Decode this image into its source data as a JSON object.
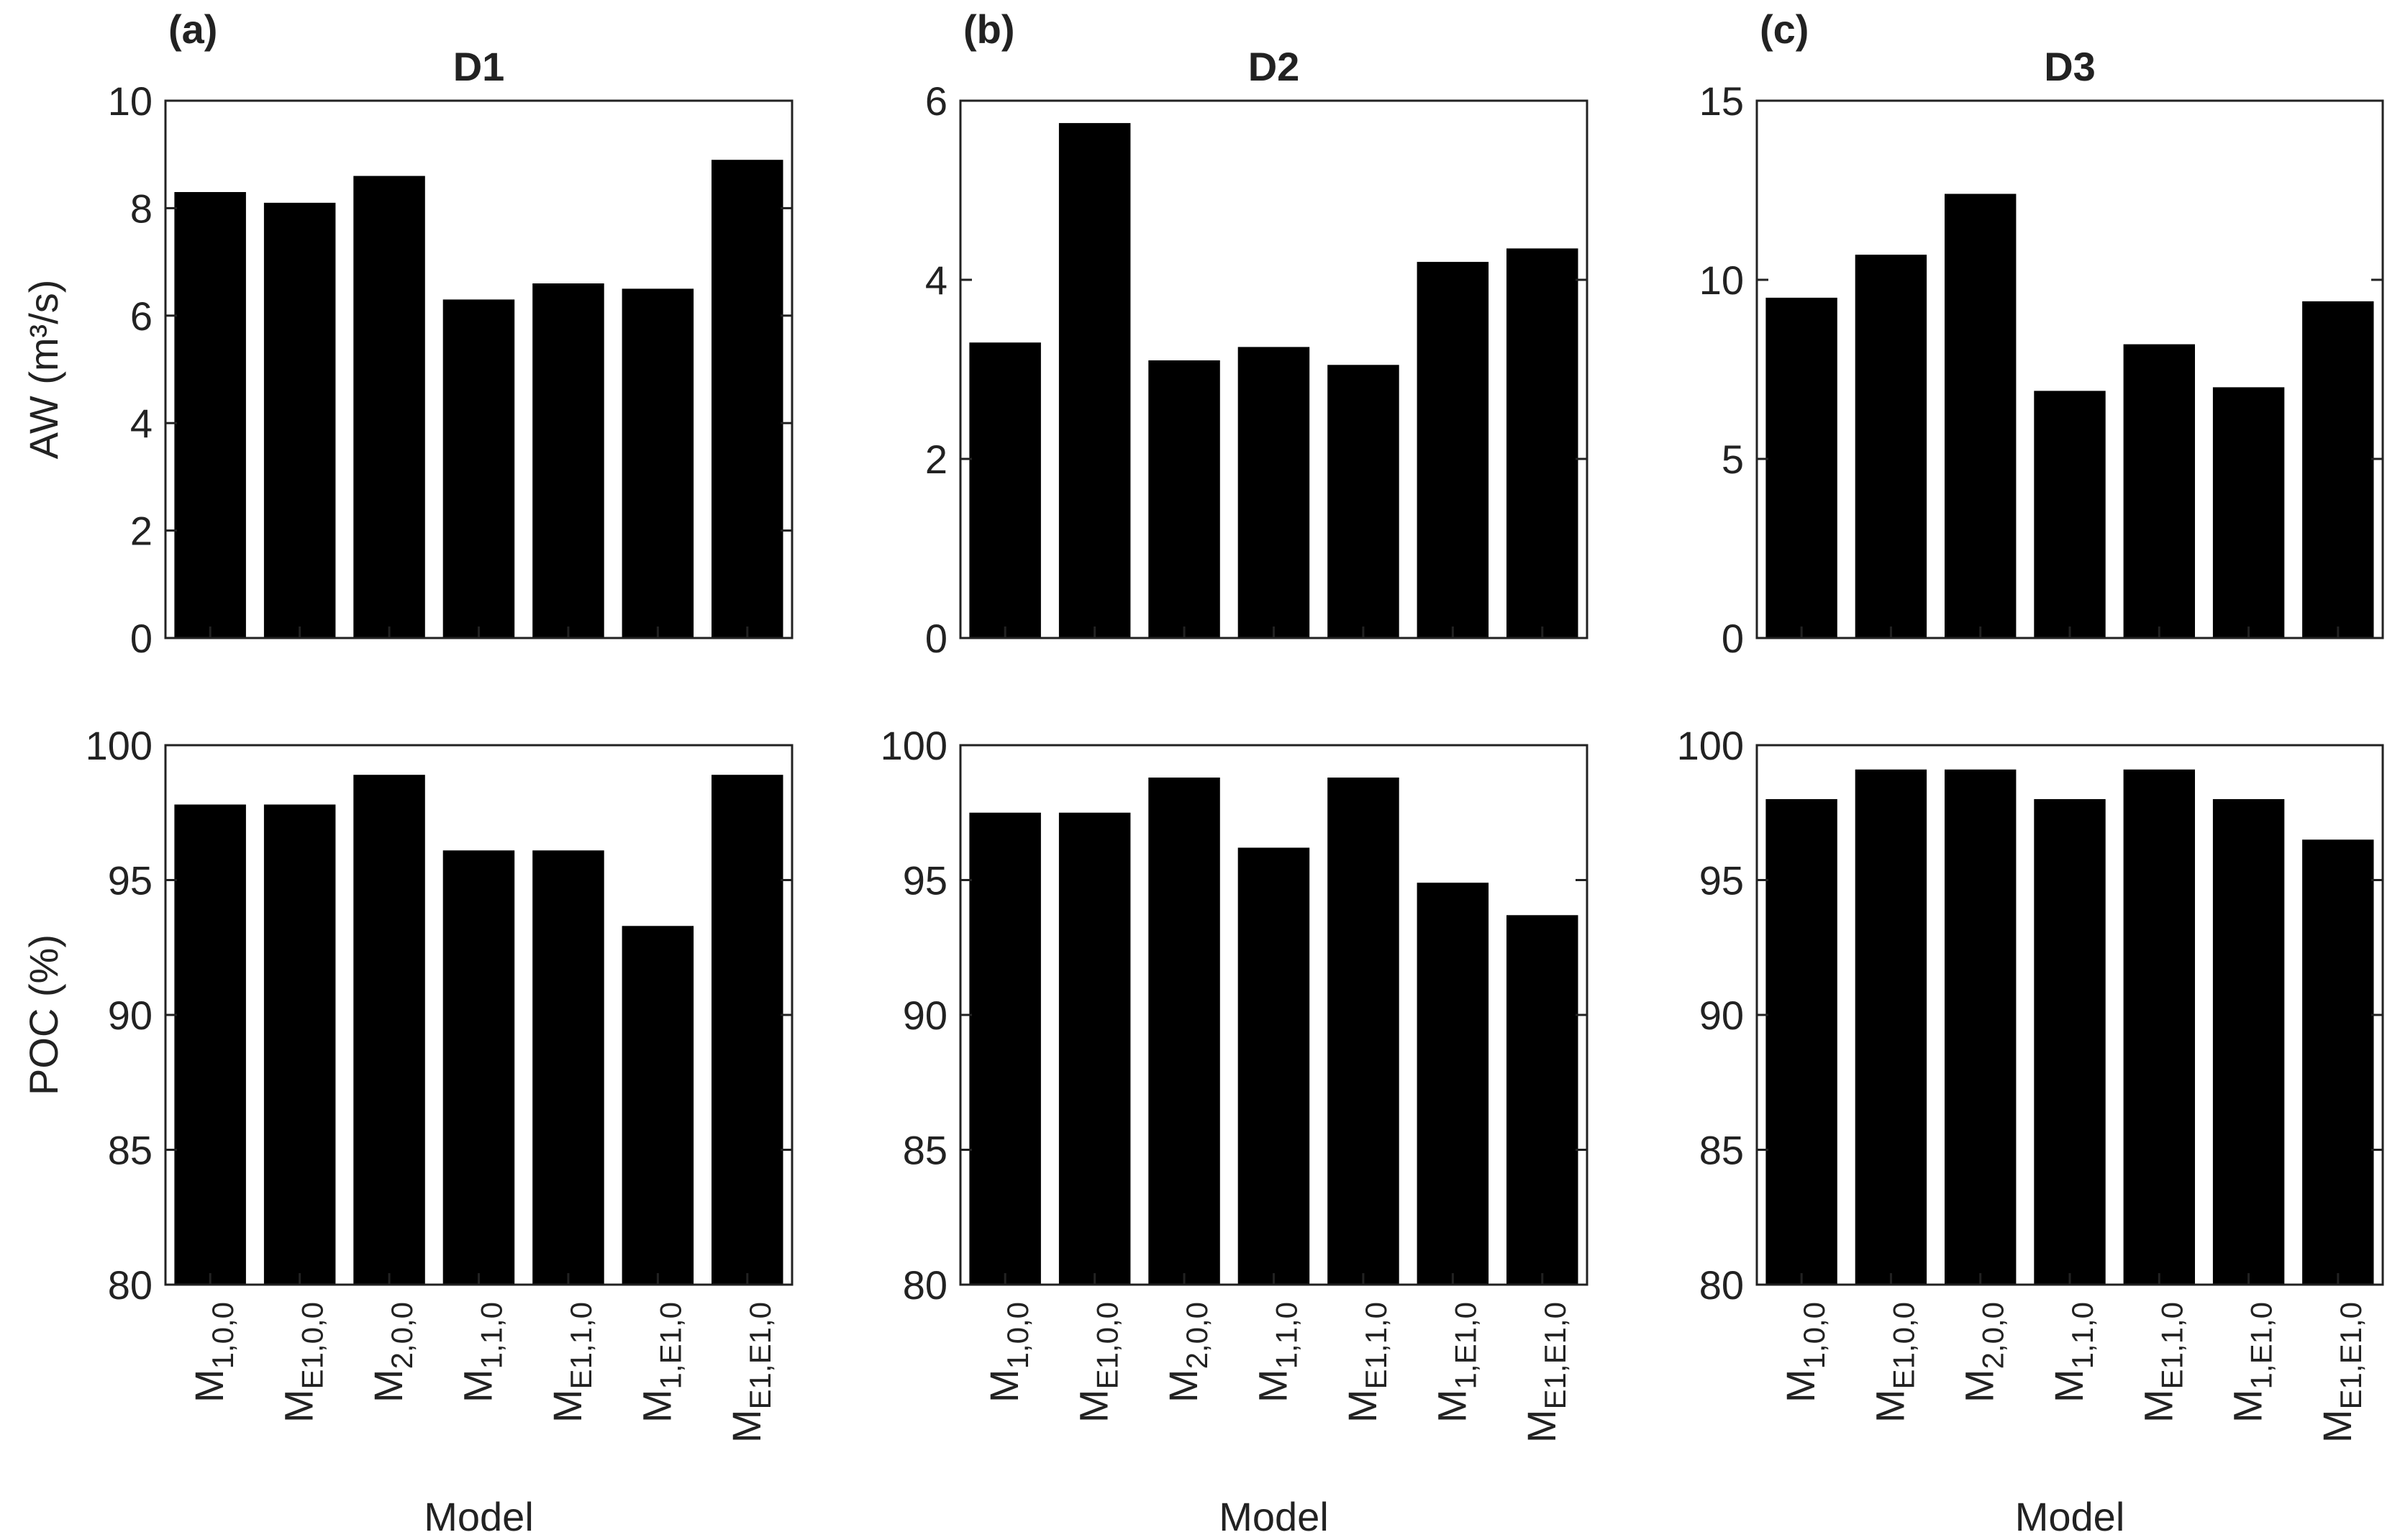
{
  "chart_data": [
    {
      "type": "bar",
      "panel": "(a)",
      "title": "D1",
      "metric": "AW",
      "categories": [
        [
          "M",
          "1,0,0"
        ],
        [
          "M",
          "E1,0,0"
        ],
        [
          "M",
          "2,0,0"
        ],
        [
          "M",
          "1,1,0"
        ],
        [
          "M",
          "E1,1,0"
        ],
        [
          "M",
          "1,E1,0"
        ],
        [
          "M",
          "E1,E1,0"
        ]
      ],
      "values": [
        8.3,
        8.1,
        8.6,
        6.3,
        6.6,
        6.5,
        8.9
      ],
      "ylabel": "AW (m³/s)",
      "xlabel": "",
      "ylim": [
        0,
        10
      ],
      "yticks": [
        0,
        2,
        4,
        6,
        8,
        10
      ]
    },
    {
      "type": "bar",
      "panel": "(b)",
      "title": "D2",
      "metric": "AW",
      "categories": [
        [
          "M",
          "1,0,0"
        ],
        [
          "M",
          "E1,0,0"
        ],
        [
          "M",
          "2,0,0"
        ],
        [
          "M",
          "1,1,0"
        ],
        [
          "M",
          "E1,1,0"
        ],
        [
          "M",
          "1,E1,0"
        ],
        [
          "M",
          "E1,E1,0"
        ]
      ],
      "values": [
        3.3,
        5.75,
        3.1,
        3.25,
        3.05,
        4.2,
        4.35
      ],
      "ylabel": "",
      "xlabel": "",
      "ylim": [
        0,
        6
      ],
      "yticks": [
        0,
        2,
        4,
        6
      ]
    },
    {
      "type": "bar",
      "panel": "(c)",
      "title": "D3",
      "metric": "AW",
      "categories": [
        [
          "M",
          "1,0,0"
        ],
        [
          "M",
          "E1,0,0"
        ],
        [
          "M",
          "2,0,0"
        ],
        [
          "M",
          "1,1,0"
        ],
        [
          "M",
          "E1,1,0"
        ],
        [
          "M",
          "1,E1,0"
        ],
        [
          "M",
          "E1,E1,0"
        ]
      ],
      "values": [
        9.5,
        10.7,
        12.4,
        6.9,
        8.2,
        7.0,
        9.4
      ],
      "ylabel": "",
      "xlabel": "",
      "ylim": [
        0,
        15
      ],
      "yticks": [
        0,
        5,
        10,
        15
      ]
    },
    {
      "type": "bar",
      "panel": "(a)",
      "title": "D1",
      "metric": "POC",
      "categories": [
        [
          "M",
          "1,0,0"
        ],
        [
          "M",
          "E1,0,0"
        ],
        [
          "M",
          "2,0,0"
        ],
        [
          "M",
          "1,1,0"
        ],
        [
          "M",
          "E1,1,0"
        ],
        [
          "M",
          "1,E1,0"
        ],
        [
          "M",
          "E1,E1,0"
        ]
      ],
      "values": [
        97.8,
        97.8,
        98.9,
        96.1,
        96.1,
        93.3,
        98.9
      ],
      "ylabel": "POC (%)",
      "xlabel": "Model",
      "ylim": [
        80,
        100
      ],
      "yticks": [
        80,
        85,
        90,
        95,
        100
      ]
    },
    {
      "type": "bar",
      "panel": "(b)",
      "title": "D2",
      "metric": "POC",
      "categories": [
        [
          "M",
          "1,0,0"
        ],
        [
          "M",
          "E1,0,0"
        ],
        [
          "M",
          "2,0,0"
        ],
        [
          "M",
          "1,1,0"
        ],
        [
          "M",
          "E1,1,0"
        ],
        [
          "M",
          "1,E1,0"
        ],
        [
          "M",
          "E1,E1,0"
        ]
      ],
      "values": [
        97.5,
        97.5,
        98.8,
        96.2,
        98.8,
        94.9,
        93.7
      ],
      "ylabel": "",
      "xlabel": "Model",
      "ylim": [
        80,
        100
      ],
      "yticks": [
        80,
        85,
        90,
        95,
        100
      ]
    },
    {
      "type": "bar",
      "panel": "(c)",
      "title": "D3",
      "metric": "POC",
      "categories": [
        [
          "M",
          "1,0,0"
        ],
        [
          "M",
          "E1,0,0"
        ],
        [
          "M",
          "2,0,0"
        ],
        [
          "M",
          "1,1,0"
        ],
        [
          "M",
          "E1,1,0"
        ],
        [
          "M",
          "1,E1,0"
        ],
        [
          "M",
          "E1,E1,0"
        ]
      ],
      "values": [
        98.0,
        99.1,
        99.1,
        98.0,
        99.1,
        98.0,
        96.5
      ],
      "ylabel": "",
      "xlabel": "Model",
      "ylim": [
        80,
        100
      ],
      "yticks": [
        80,
        85,
        90,
        95,
        100
      ]
    }
  ],
  "colors": {
    "bar": "#000000",
    "axis": "#222222",
    "background": "#ffffff"
  }
}
